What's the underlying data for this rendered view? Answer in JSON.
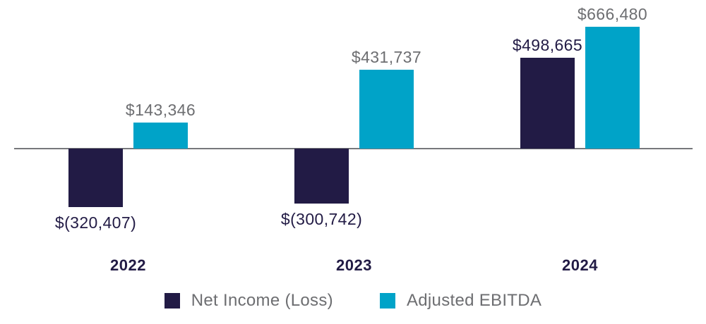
{
  "chart_data": {
    "type": "bar",
    "categories": [
      "2022",
      "2023",
      "2024"
    ],
    "series": [
      {
        "name": "Net Income (Loss)",
        "color": "#221b45",
        "values": [
          -320407,
          -300742,
          498665
        ],
        "value_labels": [
          "$(320,407)",
          "$(300,742)",
          "$498,665"
        ],
        "label_color": "#221b45"
      },
      {
        "name": "Adjusted EBITDA",
        "color": "#00a3c8",
        "values": [
          143346,
          431737,
          666480
        ],
        "value_labels": [
          "$143,346",
          "$431,737",
          "$666,480"
        ],
        "label_color": "#6d6e71"
      }
    ],
    "title": "",
    "xlabel": "",
    "ylabel": "",
    "ylim": [
      -350000,
      700000
    ],
    "baseline": 0,
    "grid": false,
    "axis_line_color": "#77787b",
    "legend_position": "bottom"
  },
  "legend": {
    "items": [
      {
        "label": "Net Income (Loss)",
        "color": "#221b45"
      },
      {
        "label": "Adjusted EBITDA",
        "color": "#00a3c8"
      }
    ]
  }
}
